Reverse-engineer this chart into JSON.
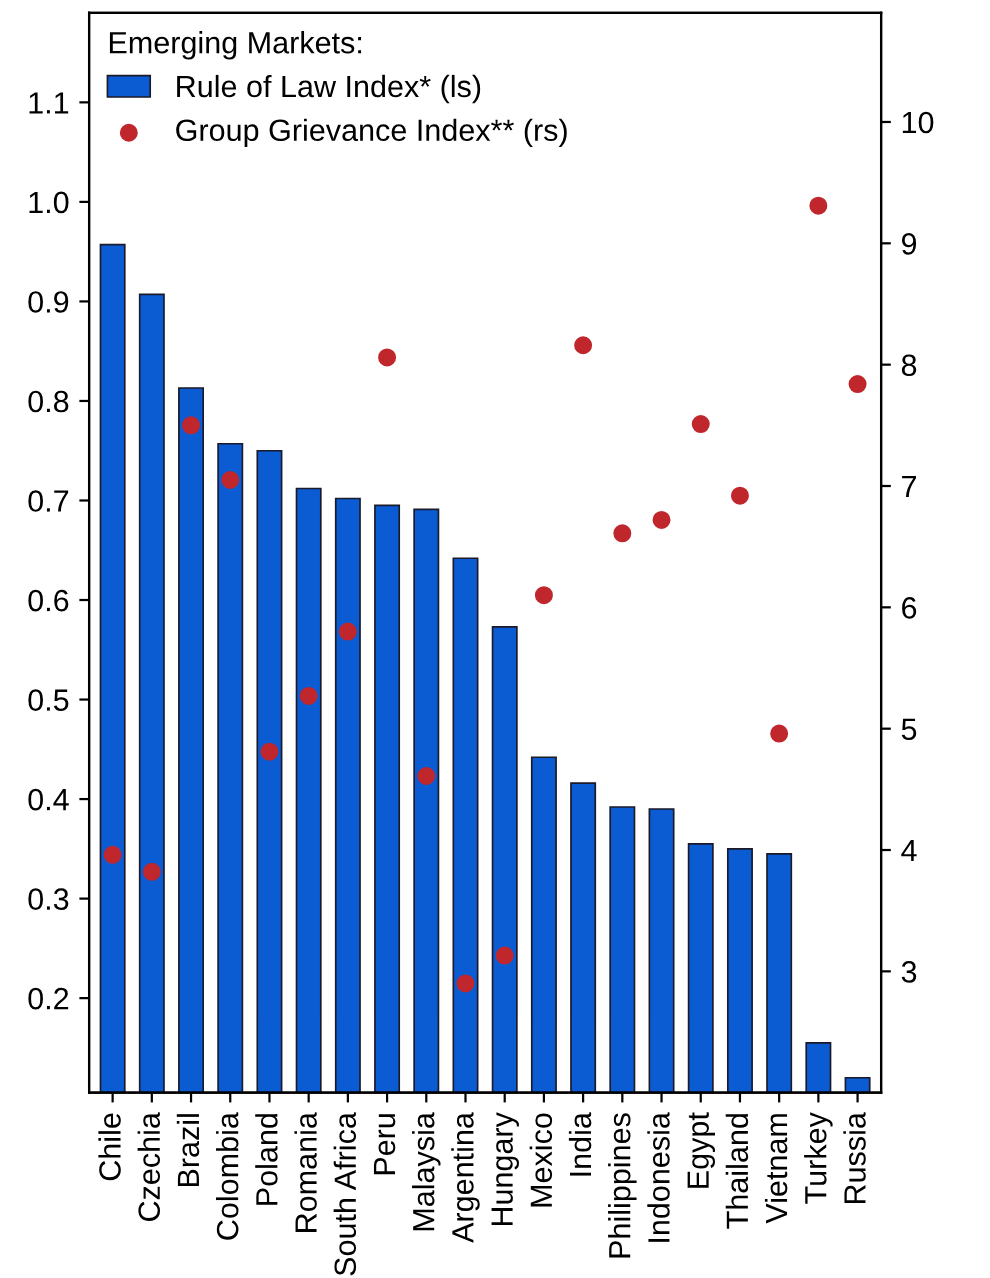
{
  "chart_data": {
    "type": "bar",
    "legend_title": "Emerging Markets:",
    "legend": "top left",
    "grid": false,
    "categories": [
      "Chile",
      "Czechia",
      "Brazil",
      "Colombia",
      "Poland",
      "Romania",
      "South Africa",
      "Peru",
      "Malaysia",
      "Argentina",
      "Hungary",
      "Mexico",
      "India",
      "Philippines",
      "Indonesia",
      "Egypt",
      "Thailand",
      "Vietnam",
      "Turkey",
      "Russia"
    ],
    "series": [
      {
        "name": "Rule of Law Index* (ls)",
        "color": "#0b5bd3",
        "values": [
          0.957,
          0.907,
          0.813,
          0.757,
          0.75,
          0.712,
          0.702,
          0.695,
          0.691,
          0.642,
          0.573,
          0.442,
          0.416,
          0.392,
          0.39,
          0.355,
          0.35,
          0.345,
          0.155,
          0.12
        ]
      },
      {
        "name": "Group Grievance Index** (rs)",
        "type": "scatter",
        "axis": "y2",
        "color": "#c0272d",
        "marker": "circle",
        "values": [
          3.96,
          3.82,
          7.5,
          7.05,
          4.81,
          5.27,
          5.8,
          8.06,
          4.61,
          2.9,
          3.13,
          6.1,
          8.16,
          6.61,
          6.72,
          7.51,
          6.92,
          4.96,
          9.31,
          7.84
        ]
      }
    ],
    "ylim": [
      0.105,
      1.19
    ],
    "yticks": [
      0.2,
      0.3,
      0.4,
      0.5,
      0.6,
      0.7,
      0.8,
      0.9,
      {
        "value": 1.0,
        "label": "1.0"
      },
      1.1
    ],
    "y2lim": [
      2.0,
      10.9
    ],
    "y2ticks": [
      3,
      4,
      5,
      6,
      7,
      8,
      9,
      10
    ]
  }
}
